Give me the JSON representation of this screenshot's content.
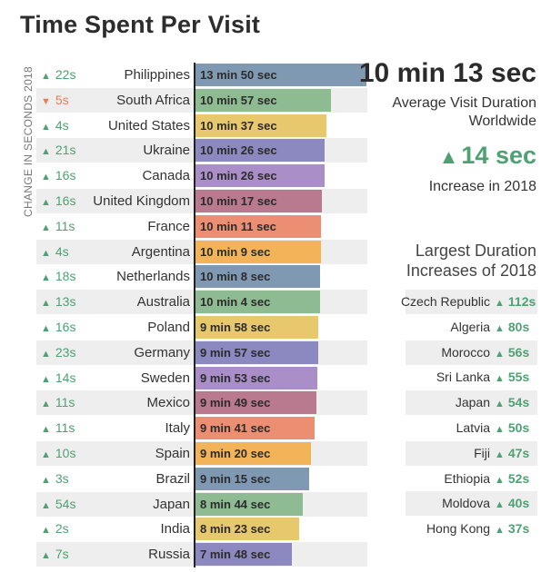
{
  "chart_data": {
    "type": "bar",
    "orientation": "horizontal",
    "title": "Time Spent Per Visit",
    "ylabel": "CHANGE IN SECONDS 2018",
    "unit": "seconds",
    "rows": [
      {
        "country": "Philippines",
        "label": "13 min 50 sec",
        "seconds": 830,
        "change": "22s",
        "direction": "up",
        "color": "#8099b3"
      },
      {
        "country": "South Africa",
        "label": "10 min 57 sec",
        "seconds": 657,
        "change": "5s",
        "direction": "down",
        "color": "#8fbb93"
      },
      {
        "country": "United States",
        "label": "10 min 37 sec",
        "seconds": 637,
        "change": "4s",
        "direction": "up",
        "color": "#e8c86c"
      },
      {
        "country": "Ukraine",
        "label": "10 min 26 sec",
        "seconds": 626,
        "change": "21s",
        "direction": "up",
        "color": "#8c88c0"
      },
      {
        "country": "Canada",
        "label": "10 min 26 sec",
        "seconds": 626,
        "change": "16s",
        "direction": "up",
        "color": "#a98ec7"
      },
      {
        "country": "United Kingdom",
        "label": "10 min 17 sec",
        "seconds": 617,
        "change": "16s",
        "direction": "up",
        "color": "#b9798f"
      },
      {
        "country": "France",
        "label": "10 min 11 sec",
        "seconds": 611,
        "change": "11s",
        "direction": "up",
        "color": "#ec8e72"
      },
      {
        "country": "Argentina",
        "label": "10 min 9 sec",
        "seconds": 609,
        "change": "4s",
        "direction": "up",
        "color": "#f3b459"
      },
      {
        "country": "Netherlands",
        "label": "10 min 8 sec",
        "seconds": 608,
        "change": "18s",
        "direction": "up",
        "color": "#8099b3"
      },
      {
        "country": "Australia",
        "label": "10 min 4 sec",
        "seconds": 604,
        "change": "13s",
        "direction": "up",
        "color": "#8fbb93"
      },
      {
        "country": "Poland",
        "label": "9 min 58 sec",
        "seconds": 598,
        "change": "16s",
        "direction": "up",
        "color": "#e8c86c"
      },
      {
        "country": "Germany",
        "label": "9 min 57 sec",
        "seconds": 597,
        "change": "23s",
        "direction": "up",
        "color": "#8c88c0"
      },
      {
        "country": "Sweden",
        "label": "9 min 53 sec",
        "seconds": 593,
        "change": "14s",
        "direction": "up",
        "color": "#a98ec7"
      },
      {
        "country": "Mexico",
        "label": "9 min 49 sec",
        "seconds": 589,
        "change": "11s",
        "direction": "up",
        "color": "#b9798f"
      },
      {
        "country": "Italy",
        "label": "9 min 41 sec",
        "seconds": 581,
        "change": "11s",
        "direction": "up",
        "color": "#ec8e72"
      },
      {
        "country": "Spain",
        "label": "9 min 20 sec",
        "seconds": 560,
        "change": "10s",
        "direction": "up",
        "color": "#f3b459"
      },
      {
        "country": "Brazil",
        "label": "9 min 15 sec",
        "seconds": 555,
        "change": "3s",
        "direction": "up",
        "color": "#8099b3"
      },
      {
        "country": "Japan",
        "label": "8 min 44 sec",
        "seconds": 524,
        "change": "54s",
        "direction": "up",
        "color": "#8fbb93"
      },
      {
        "country": "India",
        "label": "8 min 23 sec",
        "seconds": 503,
        "change": "2s",
        "direction": "up",
        "color": "#e8c86c"
      },
      {
        "country": "Russia",
        "label": "7 min 48 sec",
        "seconds": 468,
        "change": "7s",
        "direction": "up",
        "color": "#8c88c0"
      }
    ],
    "max_seconds": 830
  },
  "summary": {
    "avg_duration": "10 min 13 sec",
    "avg_label": "Average Visit Duration Worldwide",
    "increase": "14 sec",
    "increase_label": "Increase in 2018"
  },
  "largest_increases": {
    "title": "Largest Duration Increases of 2018",
    "items": [
      {
        "country": "Czech Republic",
        "value": "112s"
      },
      {
        "country": "Algeria",
        "value": "80s"
      },
      {
        "country": "Morocco",
        "value": "56s"
      },
      {
        "country": "Sri Lanka",
        "value": "55s"
      },
      {
        "country": "Japan",
        "value": "54s"
      },
      {
        "country": "Latvia",
        "value": "50s"
      },
      {
        "country": "Fiji",
        "value": "47s"
      },
      {
        "country": "Ethiopia",
        "value": "52s"
      },
      {
        "country": "Moldova",
        "value": "40s"
      },
      {
        "country": "Hong Kong",
        "value": "37s"
      }
    ]
  },
  "colors": {
    "up": "#4ea172",
    "down": "#ea7f54"
  }
}
